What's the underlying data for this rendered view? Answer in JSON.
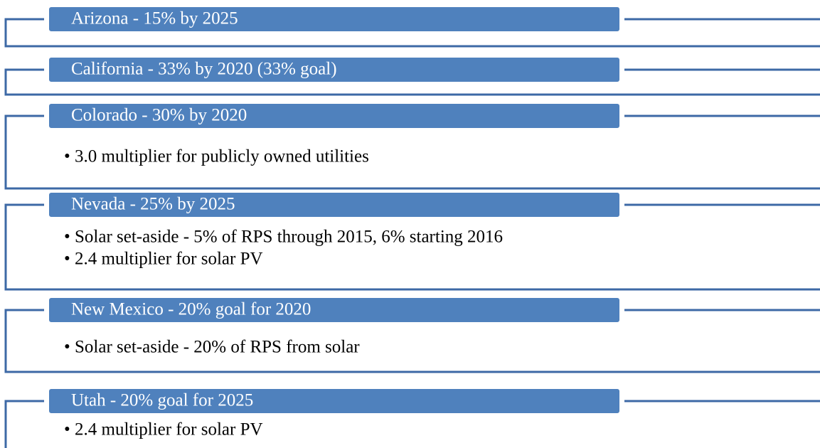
{
  "items": [
    {
      "title": "Arizona - 15% by 2025"
    },
    {
      "title": "California - 33% by 2020 (33% goal)"
    },
    {
      "title": "Colorado - 30% by 2020",
      "bullets": [
        "3.0 multiplier for publicly owned utilities"
      ]
    },
    {
      "title": "Nevada - 25% by 2025",
      "bullets": [
        "Solar set-aside - 5% of RPS through 2015, 6% starting 2016",
        "2.4 multiplier for solar PV"
      ]
    },
    {
      "title": "New Mexico - 20% goal for 2020",
      "bullets": [
        "Solar set-aside - 20% of RPS from solar"
      ]
    },
    {
      "title": "Utah - 20% goal for 2025",
      "bullets": [
        "2.4 multiplier for solar PV"
      ]
    }
  ]
}
